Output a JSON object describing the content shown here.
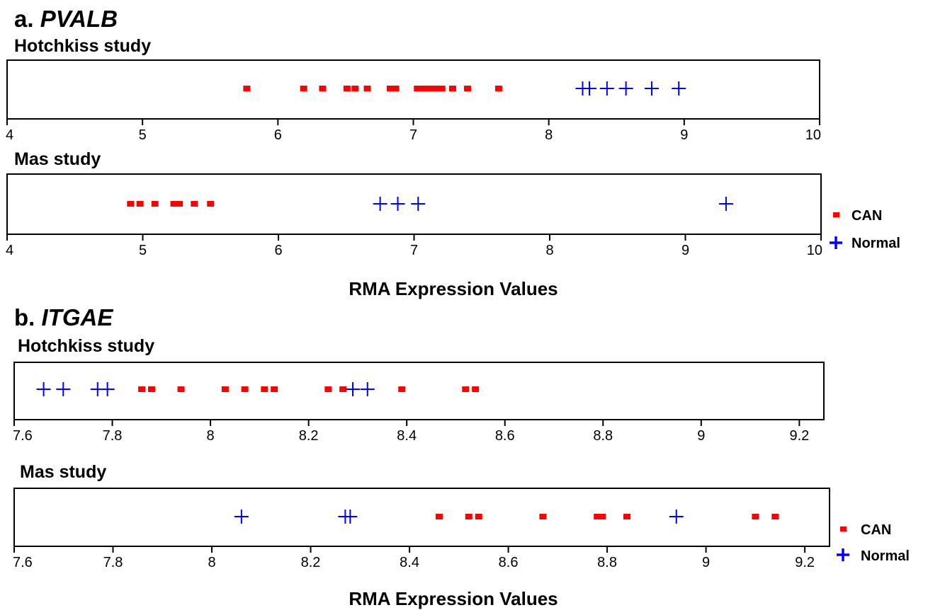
{
  "colors": {
    "can": "#ff0000",
    "normal": "#0000ff",
    "frame": "#000000"
  },
  "legend": {
    "can_label": "CAN",
    "normal_label": "Normal"
  },
  "sections": [
    {
      "prefix": "a. ",
      "gene": "PVALB",
      "xlabel": "RMA Expression Values",
      "panels": [
        {
          "title": "Hotchkiss study"
        },
        {
          "title": "Mas study"
        }
      ]
    },
    {
      "prefix": "b. ",
      "gene": "ITGAE",
      "xlabel": "RMA Expression Values",
      "panels": [
        {
          "title": "Hotchkiss study"
        },
        {
          "title": "Mas study"
        }
      ]
    }
  ],
  "chart_data": [
    {
      "type": "scatter",
      "title": "a. PVALB — Hotchkiss study",
      "xlabel": "",
      "xlim": [
        4,
        10
      ],
      "xticks": [
        "4",
        "5",
        "6",
        "7",
        "8",
        "9",
        "10"
      ],
      "series": [
        {
          "name": "CAN",
          "marker": "square",
          "values": [
            5.77,
            6.19,
            6.33,
            6.51,
            6.57,
            6.66,
            6.83,
            6.87,
            7.03,
            7.08,
            7.12,
            7.17,
            7.21,
            7.29,
            7.4,
            7.63
          ]
        },
        {
          "name": "Normal",
          "marker": "plus",
          "values": [
            8.25,
            8.3,
            8.43,
            8.57,
            8.76,
            8.96
          ]
        }
      ]
    },
    {
      "type": "scatter",
      "title": "a. PVALB — Mas study",
      "xlabel": "RMA Expression Values",
      "xlim": [
        4,
        10
      ],
      "xticks": [
        "4",
        "5",
        "6",
        "7",
        "8",
        "9",
        "10"
      ],
      "legend": "right",
      "series": [
        {
          "name": "CAN",
          "marker": "square",
          "values": [
            4.91,
            4.98,
            5.09,
            5.23,
            5.27,
            5.38,
            5.5
          ]
        },
        {
          "name": "Normal",
          "marker": "plus",
          "values": [
            6.75,
            6.88,
            7.03,
            9.3
          ]
        }
      ]
    },
    {
      "type": "scatter",
      "title": "b. ITGAE — Hotchkiss study",
      "xlabel": "",
      "xlim": [
        7.6,
        9.25
      ],
      "xticks": [
        "7.6",
        "7.8",
        "8",
        "8.2",
        "8.4",
        "8.6",
        "8.8",
        "9",
        "9.2"
      ],
      "series": [
        {
          "name": "CAN",
          "marker": "square",
          "values": [
            7.86,
            7.88,
            7.94,
            8.03,
            8.07,
            8.11,
            8.13,
            8.24,
            8.27,
            8.39,
            8.52,
            8.54
          ]
        },
        {
          "name": "Normal",
          "marker": "plus",
          "values": [
            7.66,
            7.7,
            7.77,
            7.79,
            8.29,
            8.32
          ]
        }
      ]
    },
    {
      "type": "scatter",
      "title": "b. ITGAE — Mas study",
      "xlabel": "RMA Expression Values",
      "xlim": [
        7.6,
        9.25
      ],
      "xticks": [
        "7.6",
        "7.8",
        "8",
        "8.2",
        "8.4",
        "8.6",
        "8.8",
        "9",
        "9.2"
      ],
      "legend": "right",
      "series": [
        {
          "name": "CAN",
          "marker": "square",
          "values": [
            8.46,
            8.52,
            8.54,
            8.67,
            8.78,
            8.79,
            8.84,
            9.1,
            9.14
          ]
        },
        {
          "name": "Normal",
          "marker": "plus",
          "values": [
            8.06,
            8.27,
            8.28,
            8.94
          ]
        }
      ]
    }
  ]
}
